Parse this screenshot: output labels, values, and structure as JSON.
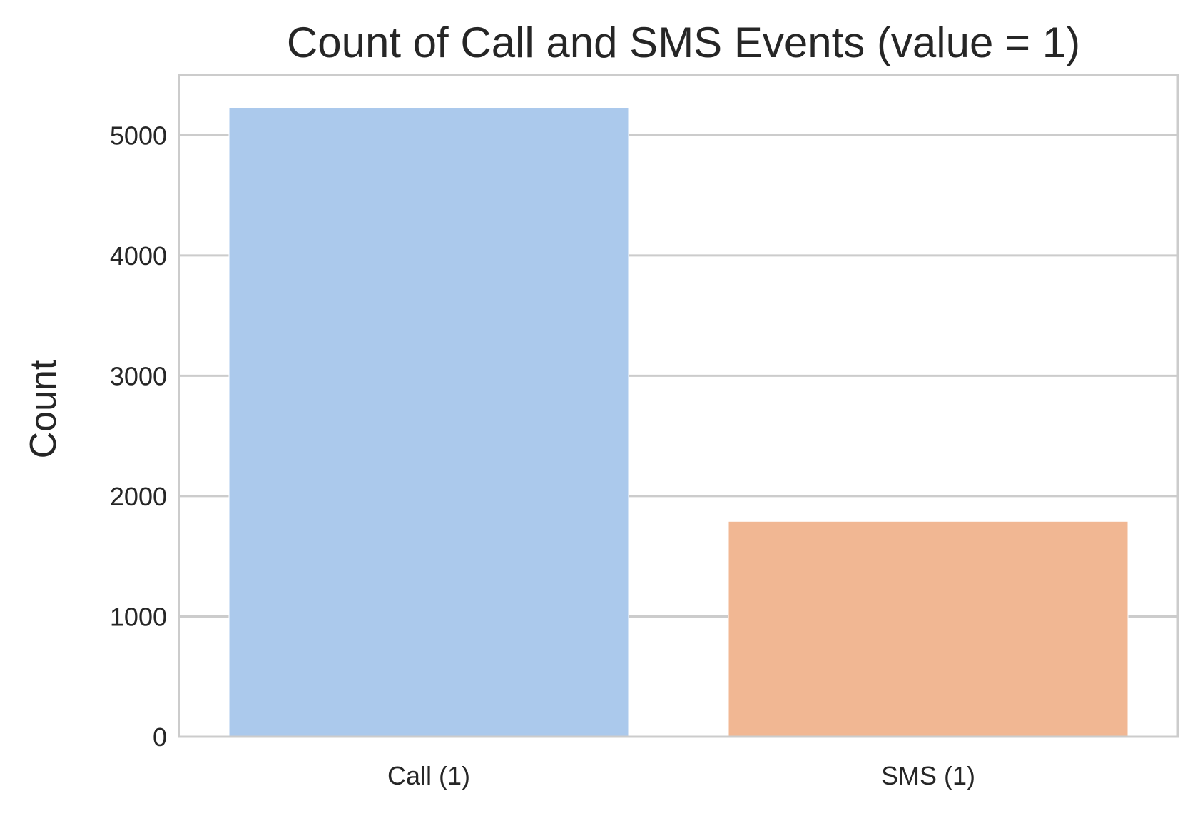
{
  "chart_data": {
    "type": "bar",
    "title": "Count of Call and SMS Events (value = 1)",
    "xlabel": "",
    "ylabel": "Count",
    "categories": [
      "Call (1)",
      "SMS (1)"
    ],
    "values": [
      5230,
      1790
    ],
    "colors": [
      "#abc9ec",
      "#f1b793"
    ],
    "ylim": [
      0,
      5500
    ],
    "yticks": [
      0,
      1000,
      2000,
      3000,
      4000,
      5000
    ],
    "ytick_labels": [
      "0",
      "1000",
      "2000",
      "3000",
      "4000",
      "5000"
    ],
    "grid": true,
    "grid_color": "#cccccc",
    "spine_color": "#cccccc",
    "legend": "none"
  }
}
